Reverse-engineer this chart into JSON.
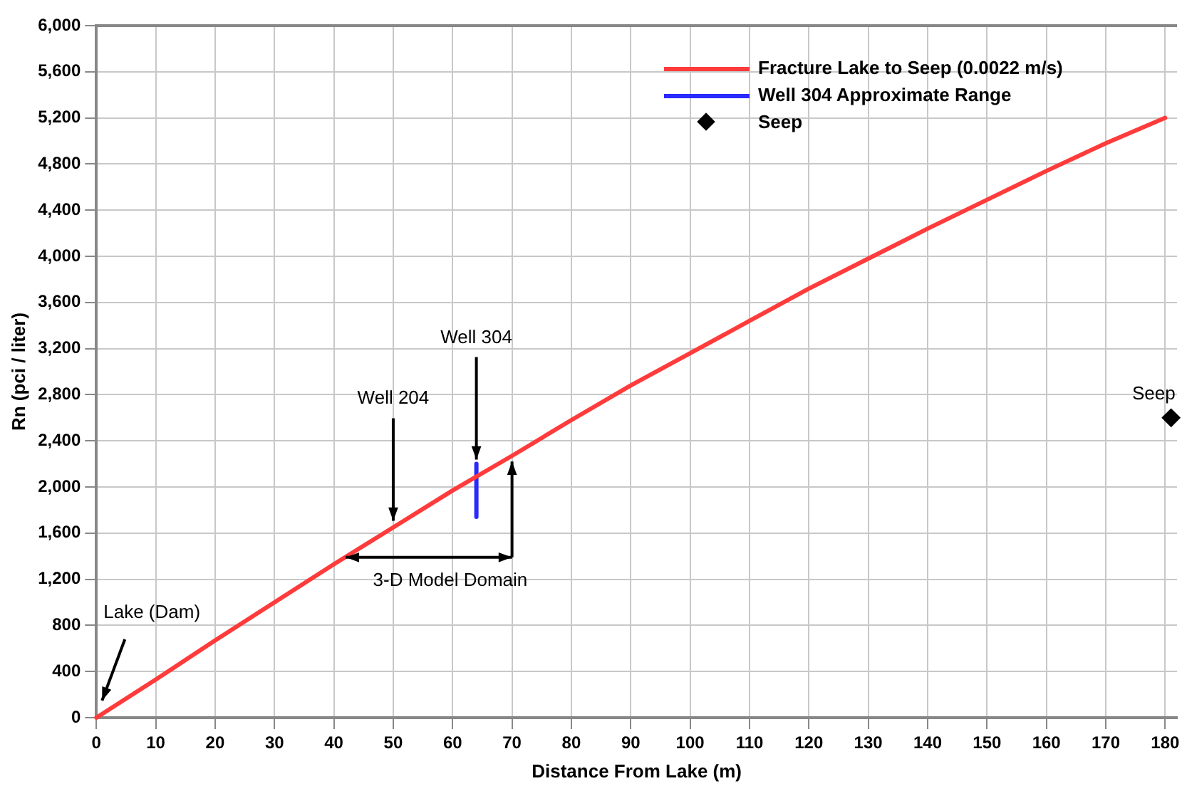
{
  "chart_data": {
    "type": "line",
    "xlabel": "Distance From Lake (m)",
    "ylabel": "Rn (pci / liter)",
    "xlim": [
      0,
      182
    ],
    "xticks": [
      0,
      10,
      20,
      30,
      40,
      50,
      60,
      70,
      80,
      90,
      100,
      110,
      120,
      130,
      140,
      150,
      160,
      170,
      180
    ],
    "ylim": [
      0,
      6000
    ],
    "yticks": [
      0,
      400,
      800,
      {
        "value": 1200,
        "label": "1,200"
      },
      {
        "value": 1600,
        "label": "1,600"
      },
      {
        "value": 2000,
        "label": "2,000"
      },
      {
        "value": 2400,
        "label": "2,400"
      },
      {
        "value": 2800,
        "label": "2,800"
      },
      {
        "value": 3200,
        "label": "3,200"
      },
      {
        "value": 3600,
        "label": "3,600"
      },
      {
        "value": 4000,
        "label": "4,000"
      },
      {
        "value": 4400,
        "label": "4,400"
      },
      {
        "value": 4800,
        "label": "4,800"
      },
      {
        "value": 5200,
        "label": "5,200"
      },
      {
        "value": 5600,
        "label": "5,600"
      },
      {
        "value": 6000,
        "label": "6,000"
      }
    ],
    "grid": true,
    "legend": "top right",
    "series": [
      {
        "name": "Fracture Lake to Seep (0.0022 m/s)",
        "color": "#ff3b3b",
        "marker": "none",
        "x": [
          0,
          10,
          20,
          30,
          40,
          50,
          60,
          70,
          80,
          90,
          100,
          110,
          120,
          130,
          140,
          150,
          160,
          170,
          180
        ],
        "values": [
          0,
          330,
          670,
          1000,
          1330,
          1650,
          1970,
          2270,
          2580,
          2880,
          3160,
          3440,
          3720,
          3980,
          4240,
          4490,
          4740,
          4980,
          5200
        ]
      },
      {
        "name": "Well 304 Approximate Range",
        "color": "#2a2aff",
        "marker": "none",
        "x": [
          64,
          64
        ],
        "values": [
          1740,
          2200
        ]
      },
      {
        "name": "Seep",
        "type": "scatter",
        "color": "#000000",
        "marker": "diamond",
        "x": [
          181
        ],
        "values": [
          2600
        ]
      }
    ],
    "annotations": [
      "Lake (Dam)",
      {
        "text": "Well 204",
        "x": 50,
        "y": 1670
      },
      {
        "text": "Well 304",
        "x": 64,
        "y": 2200
      },
      {
        "text": "3-D Model Domain",
        "x": 70,
        "y": 2270
      },
      {
        "text": "Seep",
        "x": 181,
        "y": 2600
      }
    ]
  }
}
